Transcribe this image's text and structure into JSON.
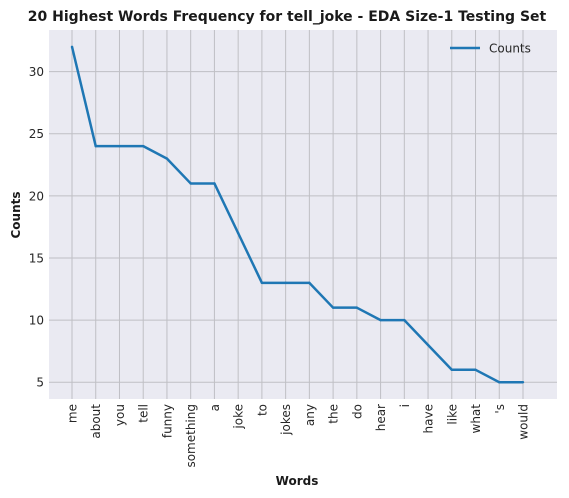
{
  "chart_data": {
    "type": "line",
    "title": "20 Highest Words Frequency for tell_joke - EDA Size-1 Testing Set",
    "xlabel": "Words",
    "ylabel": "Counts",
    "categories": [
      "me",
      "about",
      "you",
      "tell",
      "funny",
      "something",
      "a",
      "joke",
      "to",
      "jokes",
      "any",
      "the",
      "do",
      "hear",
      "i",
      "have",
      "like",
      "what",
      "'s",
      "would"
    ],
    "series": [
      {
        "name": "Counts",
        "values": [
          32,
          24,
          24,
          24,
          23,
          21,
          21,
          17,
          13,
          13,
          13,
          11,
          11,
          10,
          10,
          8,
          6,
          6,
          5,
          5
        ],
        "color": "#1f77b4"
      }
    ],
    "yticks": [
      5,
      10,
      15,
      20,
      25,
      30
    ],
    "ylim": [
      3.65,
      33.35
    ],
    "grid": true,
    "legend_position": "top-right",
    "background_color": "#eaeaf2",
    "grid_color": "#bfbfc4"
  }
}
